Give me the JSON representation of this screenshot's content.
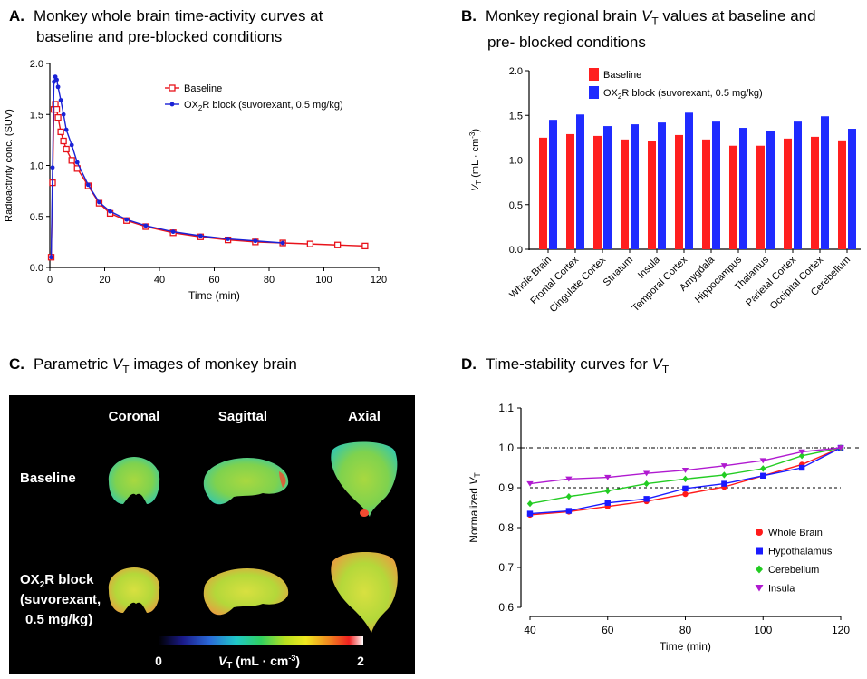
{
  "panels": {
    "a": {
      "letter": "A.",
      "title_line1": "Monkey whole brain time-activity curves at",
      "title_line2": "baseline and pre-blocked conditions"
    },
    "b": {
      "letter": "B.",
      "title_line1_pre": "Monkey regional brain ",
      "title_line1_var": "V",
      "title_line1_sub": "T",
      "title_line1_post": " values at baseline and",
      "title_line2": "pre- blocked conditions"
    },
    "c": {
      "letter": "C.",
      "title_pre": "Parametric ",
      "title_var": "V",
      "title_sub": "T",
      "title_post": " images of monkey brain"
    },
    "d": {
      "letter": "D.",
      "title_pre": "Time-stability curves for ",
      "title_var": "V",
      "title_sub": "T"
    }
  },
  "chart_data": [
    {
      "id": "A",
      "type": "line",
      "xlabel": "Time (min)",
      "ylabel": "Radioactivity conc. (SUV)",
      "xlim": [
        0,
        120
      ],
      "ylim": [
        0,
        2.0
      ],
      "xticks": [
        "0",
        "20",
        "40",
        "60",
        "80",
        "100",
        "120"
      ],
      "yticks": [
        "0.0",
        "0.5",
        "1.0",
        "1.5",
        "2.0"
      ],
      "legend_position": "top-right",
      "series": [
        {
          "name": "Baseline",
          "legend_pre": "Baseline",
          "legend_sub": "",
          "legend_post": "",
          "color": "#e8131b",
          "marker": "square-open",
          "x": [
            0.5,
            1,
            1.5,
            2,
            2.5,
            3,
            4,
            5,
            6,
            8,
            10,
            14,
            18,
            22,
            28,
            35,
            45,
            55,
            65,
            75,
            85,
            95,
            105,
            115
          ],
          "y": [
            0.1,
            0.83,
            1.55,
            1.6,
            1.55,
            1.47,
            1.33,
            1.24,
            1.16,
            1.05,
            0.97,
            0.8,
            0.63,
            0.53,
            0.46,
            0.4,
            0.34,
            0.3,
            0.27,
            0.25,
            0.24,
            0.23,
            0.22,
            0.21
          ]
        },
        {
          "name": "OX2R block (suvorexant, 0.5 mg/kg)",
          "legend_pre": "OX",
          "legend_sub": "2",
          "legend_post": "R block (suvorexant, 0.5 mg/kg)",
          "color": "#1a22d6",
          "marker": "circle",
          "x": [
            0.5,
            1,
            1.5,
            2,
            2.5,
            3,
            4,
            5,
            6,
            8,
            10,
            14,
            18,
            22,
            28,
            35,
            45,
            55,
            65,
            75,
            85
          ],
          "y": [
            0.1,
            0.98,
            1.82,
            1.87,
            1.84,
            1.77,
            1.64,
            1.5,
            1.35,
            1.2,
            1.03,
            0.81,
            0.64,
            0.55,
            0.47,
            0.41,
            0.35,
            0.31,
            0.28,
            0.26,
            0.24
          ]
        }
      ]
    },
    {
      "id": "B",
      "type": "bar",
      "ylabel_var": "V",
      "ylabel_sub": "T",
      "ylabel_post": " (mL · cm",
      "ylabel_sup": "-3",
      "ylabel_end": ")",
      "ylim": [
        0,
        2.0
      ],
      "yticks": [
        "0.0",
        "0.5",
        "1.0",
        "1.5",
        "2.0"
      ],
      "legend_position": "top",
      "categories": [
        "Whole Brain",
        "Frontal Cortex",
        "Cingulate Cortex",
        "Striatum",
        "Insula",
        "Temporal Cortex",
        "Amygdala",
        "Hippocampus",
        "Thalamus",
        "Parietal Cortex",
        "Occipital Cortex",
        "Cerebellum"
      ],
      "series": [
        {
          "name": "Baseline",
          "legend_pre": "Baseline",
          "legend_sub": "",
          "legend_post": "",
          "color": "#ff1f1f",
          "values": [
            1.25,
            1.29,
            1.27,
            1.23,
            1.21,
            1.28,
            1.23,
            1.16,
            1.16,
            1.24,
            1.26,
            1.22
          ]
        },
        {
          "name": "OX2R block (suvorexant, 0.5 mg/kg)",
          "legend_pre": "OX",
          "legend_sub": "2",
          "legend_post": "R block (suvorexant, 0.5 mg/kg)",
          "color": "#1f2bff",
          "values": [
            1.45,
            1.51,
            1.38,
            1.4,
            1.42,
            1.53,
            1.43,
            1.36,
            1.33,
            1.43,
            1.49,
            1.35
          ]
        }
      ]
    },
    {
      "id": "D",
      "type": "line",
      "xlabel": "Time (min)",
      "ylabel_pre": "Normalized ",
      "ylabel_var": "V",
      "ylabel_sub": "T",
      "xlim": [
        40,
        120
      ],
      "ylim": [
        0.6,
        1.1
      ],
      "xticks": [
        "40",
        "60",
        "80",
        "100",
        "120"
      ],
      "yticks": [
        "0.6",
        "0.7",
        "0.8",
        "0.9",
        "1.0",
        "1.1"
      ],
      "reference_lines": [
        1.0,
        0.9
      ],
      "legend_position": "bottom-right",
      "series": [
        {
          "name": "Whole Brain",
          "color": "#ff1a1a",
          "marker": "circle",
          "x": [
            40,
            50,
            60,
            70,
            80,
            90,
            100,
            110,
            120
          ],
          "y": [
            0.832,
            0.84,
            0.853,
            0.866,
            0.884,
            0.902,
            0.93,
            0.958,
            1.0
          ]
        },
        {
          "name": "Hypothalamus",
          "color": "#1a1aff",
          "marker": "square",
          "x": [
            40,
            50,
            60,
            70,
            80,
            90,
            100,
            110,
            120
          ],
          "y": [
            0.835,
            0.842,
            0.862,
            0.872,
            0.898,
            0.91,
            0.93,
            0.95,
            1.0
          ]
        },
        {
          "name": "Cerebellum",
          "color": "#22cc22",
          "marker": "diamond",
          "x": [
            40,
            50,
            60,
            70,
            80,
            90,
            100,
            110,
            120
          ],
          "y": [
            0.86,
            0.878,
            0.892,
            0.91,
            0.922,
            0.932,
            0.948,
            0.98,
            1.0
          ]
        },
        {
          "name": "Insula",
          "color": "#b01ad0",
          "marker": "triangle-down",
          "x": [
            40,
            50,
            60,
            70,
            80,
            90,
            100,
            110,
            120
          ],
          "y": [
            0.91,
            0.922,
            0.926,
            0.936,
            0.944,
            0.955,
            0.968,
            0.99,
            1.0
          ]
        }
      ]
    }
  ],
  "mri": {
    "col_headers": [
      "Coronal",
      "Sagittal",
      "Axial"
    ],
    "row1_label": "Baseline",
    "row2_line1_pre": "OX",
    "row2_line1_sub": "2",
    "row2_line1_post": "R block",
    "row2_line2": "(suvorexant,",
    "row2_line3": "0.5 mg/kg)",
    "colorbar_min": "0",
    "colorbar_max": "2",
    "colorbar_label_var": "V",
    "colorbar_label_sub": "T",
    "colorbar_label_post": " (mL · cm",
    "colorbar_label_sup": "-3",
    "colorbar_label_end": ")"
  }
}
